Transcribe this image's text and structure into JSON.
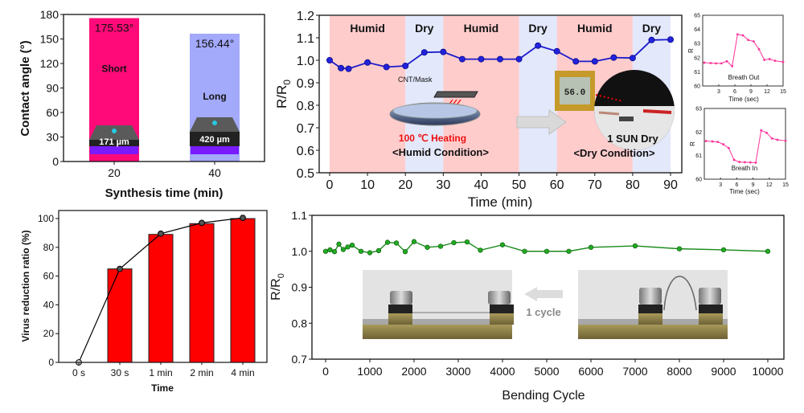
{
  "chart_data": [
    {
      "id": "contact-angle",
      "type": "bar",
      "xlabel": "Synthesis time (min)",
      "ylabel": "Contact angle (°)",
      "ylim": [
        0,
        180
      ],
      "yticks": [
        0,
        30,
        60,
        90,
        120,
        150,
        180
      ],
      "categories": [
        "20",
        "40"
      ],
      "values": [
        175.53,
        156.44
      ],
      "value_labels": [
        "175.53°",
        "156.44°"
      ],
      "bar_names": [
        "Short",
        "Long"
      ],
      "thickness_labels": [
        "171 µm",
        "420 µm"
      ],
      "colors": [
        "#ff0a78",
        "#a3a9fb"
      ]
    },
    {
      "id": "humidity-cycle",
      "type": "line",
      "xlabel": "Time (min)",
      "ylabel": "R/R",
      "ylabel_sub": "0",
      "xlim": [
        -2,
        93
      ],
      "ylim": [
        0.5,
        1.2
      ],
      "xticks": [
        0,
        10,
        20,
        30,
        40,
        50,
        60,
        70,
        80,
        90
      ],
      "yticks": [
        "0.5",
        "0.6",
        "0.7",
        "0.8",
        "0.9",
        "1.0",
        "1.1",
        "1.2"
      ],
      "regions": [
        {
          "label": "Humid",
          "from": 0,
          "to": 20,
          "color": "#ffcccc"
        },
        {
          "label": "Dry",
          "from": 20,
          "to": 30,
          "color": "#e3e8fb"
        },
        {
          "label": "Humid",
          "from": 30,
          "to": 50,
          "color": "#ffcccc"
        },
        {
          "label": "Dry",
          "from": 50,
          "to": 60,
          "color": "#e3e8fb"
        },
        {
          "label": "Humid",
          "from": 60,
          "to": 80,
          "color": "#ffcccc"
        },
        {
          "label": "Dry",
          "from": 80,
          "to": 90,
          "color": "#e3e8fb"
        }
      ],
      "series": [
        {
          "name": "R/R0",
          "color": "#1a1acc",
          "x": [
            0,
            3,
            5,
            10,
            15,
            20,
            25,
            30,
            35,
            40,
            45,
            50,
            55,
            60,
            65,
            70,
            75,
            80,
            85,
            90
          ],
          "y": [
            1.0,
            0.965,
            0.962,
            0.99,
            0.97,
            0.975,
            1.035,
            1.037,
            1.005,
            1.005,
            1.005,
            1.005,
            1.065,
            1.04,
            0.995,
            0.995,
            1.012,
            1.01,
            1.09,
            1.092
          ]
        }
      ],
      "annotations": {
        "mask_label": "CNT/Mask",
        "heating_label": "100 ℃ Heating",
        "humid_condition": "<Humid Condition>",
        "sun_label": "1 SUN Dry",
        "dry_condition": "<Dry Condition>",
        "meter_reading": "56.0"
      }
    },
    {
      "id": "breath-out",
      "type": "line",
      "xlabel": "Time (sec)",
      "ylabel": "R",
      "xlim": [
        0,
        15
      ],
      "ylim": [
        60,
        65
      ],
      "xticks": [
        3,
        6,
        9,
        12,
        15
      ],
      "yticks": [
        60,
        61,
        62,
        63,
        64,
        65
      ],
      "label": "Breath Out",
      "series": [
        {
          "color": "#ff3399",
          "x": [
            0.3,
            1.5,
            2.5,
            3.5,
            4.5,
            5.5,
            6.5,
            7.5,
            8.5,
            9.5,
            10.5,
            11.5,
            12.5,
            13.5,
            15
          ],
          "y": [
            61.65,
            61.62,
            61.6,
            61.6,
            61.75,
            61.4,
            63.65,
            63.58,
            63.25,
            63.15,
            62.6,
            61.85,
            61.9,
            61.78,
            61.7
          ]
        }
      ]
    },
    {
      "id": "breath-in",
      "type": "line",
      "xlabel": "Time (sec)",
      "ylabel": "R",
      "xlim": [
        0,
        15
      ],
      "ylim": [
        60,
        63
      ],
      "xticks": [
        3,
        6,
        9,
        12,
        15
      ],
      "yticks": [
        60,
        61,
        62,
        63
      ],
      "label": "Breath In",
      "series": [
        {
          "color": "#ff3399",
          "x": [
            0.3,
            1.5,
            2.5,
            3.5,
            4.5,
            5.5,
            6.5,
            7.5,
            8.5,
            9.5,
            10.5,
            11.5,
            12.5,
            13.5,
            15
          ],
          "y": [
            61.62,
            61.6,
            61.58,
            61.48,
            61.32,
            60.82,
            60.73,
            60.72,
            60.71,
            60.7,
            62.07,
            61.97,
            61.73,
            61.67,
            61.63
          ]
        }
      ]
    },
    {
      "id": "virus-reduction",
      "type": "bar",
      "xlabel": "Time",
      "ylabel": "Virus reduction ratio (%)",
      "ylim": [
        0,
        100
      ],
      "yticks": [
        0,
        20,
        40,
        60,
        80,
        100
      ],
      "categories": [
        "0 s",
        "30 s",
        "1 min",
        "2 min",
        "4 min"
      ],
      "values": [
        0,
        65,
        89,
        96.5,
        100
      ],
      "bar_color": "#ff0000",
      "series": [
        {
          "name": "trend",
          "color": "#000000",
          "values": [
            0,
            65,
            89.5,
            97,
            100.5
          ]
        }
      ]
    },
    {
      "id": "bending-cycle",
      "type": "line",
      "xlabel": "Bending Cycle",
      "ylabel": "R/R",
      "ylabel_sub": "0",
      "xlim": [
        -500,
        10300
      ],
      "ylim": [
        0.7,
        1.1
      ],
      "xticks": [
        0,
        1000,
        2000,
        3000,
        4000,
        5000,
        6000,
        7000,
        8000,
        9000,
        10000
      ],
      "yticks": [
        "0.7",
        "0.8",
        "0.9",
        "1.0",
        "1.1"
      ],
      "series": [
        {
          "name": "R/R0",
          "color": "#1a8a1a",
          "x": [
            0,
            100,
            200,
            300,
            400,
            500,
            600,
            800,
            1000,
            1200,
            1400,
            1600,
            1800,
            2000,
            2300,
            2600,
            2900,
            3200,
            3500,
            4000,
            4500,
            5000,
            5500,
            6000,
            7000,
            8000,
            9000,
            10000
          ],
          "y": [
            1.0,
            1.004,
            0.999,
            1.02,
            1.005,
            1.012,
            1.017,
            1.0,
            0.996,
            1.002,
            1.025,
            1.023,
            0.999,
            1.027,
            1.011,
            1.014,
            1.024,
            1.026,
            1.003,
            1.018,
            1.0,
            1.0,
            1.0,
            1.011,
            1.015,
            1.007,
            1.004,
            1.0
          ]
        }
      ],
      "annotations": {
        "cycle_label": "1 cycle"
      }
    }
  ]
}
